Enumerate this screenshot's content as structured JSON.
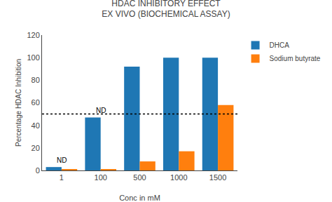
{
  "chart_data": {
    "type": "bar",
    "title": "HDAC INHIBITORY EFFECT\nEX VIVO (BIOCHEMICAL ASSAY)",
    "xlabel": "Conc in mM",
    "ylabel": "Percentage HDAC Inhibition",
    "categories": [
      "1",
      "100",
      "500",
      "1000",
      "1500"
    ],
    "series": [
      {
        "name": "DHCA",
        "values": [
          3,
          47,
          92,
          100,
          100
        ]
      },
      {
        "name": "Sodium butyrate",
        "values": [
          1,
          1,
          8,
          17,
          58
        ]
      }
    ],
    "ylim": [
      0,
      120
    ],
    "yticks": [
      0,
      20,
      40,
      60,
      80,
      100,
      120
    ],
    "reference_line": {
      "y": 50,
      "line_style": "dotted",
      "color": "#000000"
    },
    "annotations": [
      {
        "text": "ND",
        "x": "1",
        "series": "DHCA"
      },
      {
        "text": "ND",
        "x": "100",
        "series": "DHCA"
      }
    ],
    "grid": false,
    "legend": "right"
  }
}
